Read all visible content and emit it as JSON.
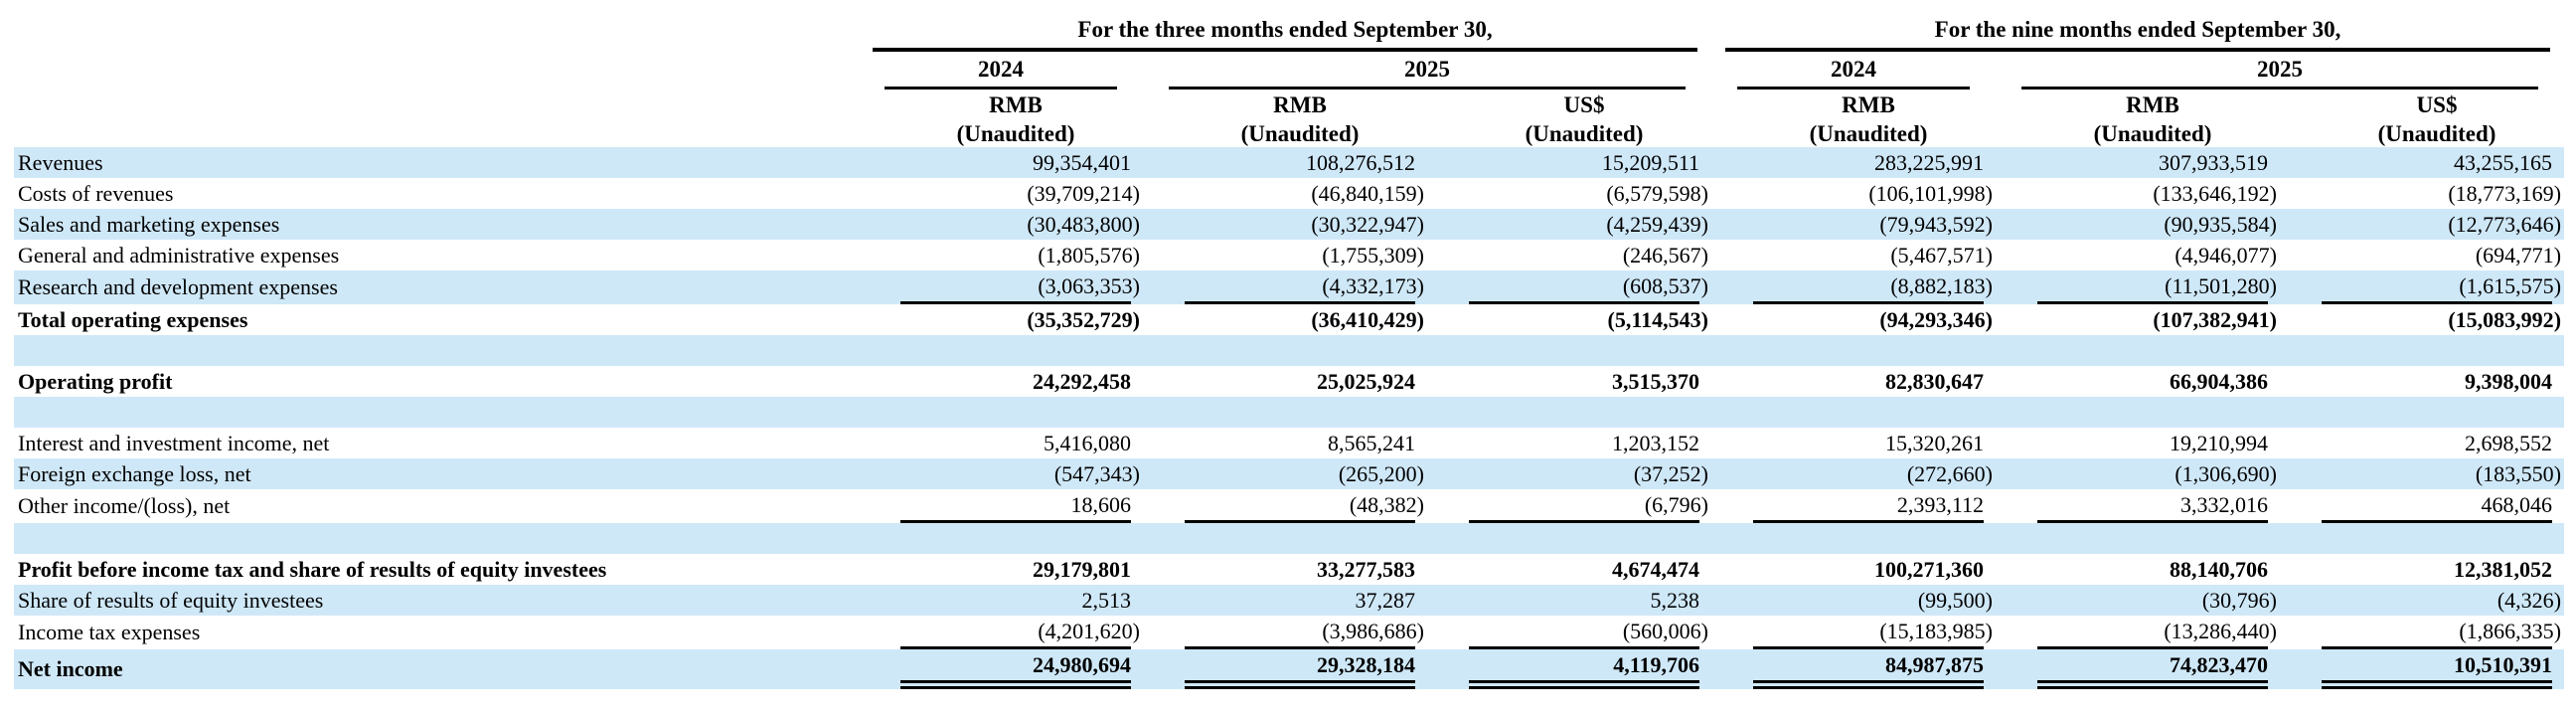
{
  "page": {
    "background": "#ffffff",
    "stripe_color": "#cfe8f8",
    "text_color": "#000000"
  },
  "header": {
    "groups": [
      {
        "title": "For the three months ended September 30,",
        "years": [
          {
            "label": "2024",
            "span": 1
          },
          {
            "label": "2025",
            "span": 2
          }
        ]
      },
      {
        "title": "For the nine months ended September 30,",
        "years": [
          {
            "label": "2024",
            "span": 1
          },
          {
            "label": "2025",
            "span": 2
          }
        ]
      }
    ],
    "currencies": [
      "RMB",
      "RMB",
      "US$",
      "RMB",
      "RMB",
      "US$"
    ],
    "unaudited": "(Unaudited)"
  },
  "rows": [
    {
      "label": "Revenues",
      "bold": false,
      "shaded": true,
      "rule": "",
      "blank": false,
      "values": [
        "99,354,401",
        "108,276,512",
        "15,209,511",
        "283,225,991",
        "307,933,519",
        "43,255,165"
      ]
    },
    {
      "label": "Costs of revenues",
      "bold": false,
      "shaded": false,
      "rule": "",
      "blank": false,
      "values": [
        "(39,709,214)",
        "(46,840,159)",
        "(6,579,598)",
        "(106,101,998)",
        "(133,646,192)",
        "(18,773,169)"
      ]
    },
    {
      "label": "Sales and marketing expenses",
      "bold": false,
      "shaded": true,
      "rule": "",
      "blank": false,
      "values": [
        "(30,483,800)",
        "(30,322,947)",
        "(4,259,439)",
        "(79,943,592)",
        "(90,935,584)",
        "(12,773,646)"
      ]
    },
    {
      "label": "General and administrative expenses",
      "bold": false,
      "shaded": false,
      "rule": "",
      "blank": false,
      "values": [
        "(1,805,576)",
        "(1,755,309)",
        "(246,567)",
        "(5,467,571)",
        "(4,946,077)",
        "(694,771)"
      ]
    },
    {
      "label": "Research and development expenses",
      "bold": false,
      "shaded": true,
      "rule": "bottom-single",
      "blank": false,
      "values": [
        "(3,063,353)",
        "(4,332,173)",
        "(608,537)",
        "(8,882,183)",
        "(11,501,280)",
        "(1,615,575)"
      ]
    },
    {
      "label": "Total operating expenses",
      "bold": true,
      "shaded": false,
      "rule": "",
      "blank": false,
      "values": [
        "(35,352,729)",
        "(36,410,429)",
        "(5,114,543)",
        "(94,293,346)",
        "(107,382,941)",
        "(15,083,992)"
      ]
    },
    {
      "label": "",
      "bold": false,
      "shaded": true,
      "rule": "",
      "blank": true,
      "values": [
        "",
        "",
        "",
        "",
        "",
        ""
      ]
    },
    {
      "label": "Operating profit",
      "bold": true,
      "shaded": false,
      "rule": "",
      "blank": false,
      "values": [
        "24,292,458",
        "25,025,924",
        "3,515,370",
        "82,830,647",
        "66,904,386",
        "9,398,004"
      ]
    },
    {
      "label": "",
      "bold": false,
      "shaded": true,
      "rule": "",
      "blank": true,
      "values": [
        "",
        "",
        "",
        "",
        "",
        ""
      ]
    },
    {
      "label": "Interest and investment income, net",
      "bold": false,
      "shaded": false,
      "rule": "",
      "blank": false,
      "values": [
        "5,416,080",
        "8,565,241",
        "1,203,152",
        "15,320,261",
        "19,210,994",
        "2,698,552"
      ]
    },
    {
      "label": "Foreign exchange loss, net",
      "bold": false,
      "shaded": true,
      "rule": "",
      "blank": false,
      "values": [
        "(547,343)",
        "(265,200)",
        "(37,252)",
        "(272,660)",
        "(1,306,690)",
        "(183,550)"
      ]
    },
    {
      "label": "Other income/(loss), net",
      "bold": false,
      "shaded": false,
      "rule": "bottom-single",
      "blank": false,
      "values": [
        "18,606",
        "(48,382)",
        "(6,796)",
        "2,393,112",
        "3,332,016",
        "468,046"
      ]
    },
    {
      "label": "",
      "bold": false,
      "shaded": true,
      "rule": "",
      "blank": true,
      "values": [
        "",
        "",
        "",
        "",
        "",
        ""
      ]
    },
    {
      "label": "Profit before income tax and share of results of equity investees",
      "bold": true,
      "shaded": false,
      "rule": "",
      "blank": false,
      "values": [
        "29,179,801",
        "33,277,583",
        "4,674,474",
        "100,271,360",
        "88,140,706",
        "12,381,052"
      ]
    },
    {
      "label": "Share of results of equity investees",
      "bold": false,
      "shaded": true,
      "rule": "",
      "blank": false,
      "values": [
        "2,513",
        "37,287",
        "5,238",
        "(99,500)",
        "(30,796)",
        "(4,326)"
      ]
    },
    {
      "label": "Income tax expenses",
      "bold": false,
      "shaded": false,
      "rule": "bottom-single",
      "blank": false,
      "values": [
        "(4,201,620)",
        "(3,986,686)",
        "(560,006)",
        "(15,183,985)",
        "(13,286,440)",
        "(1,866,335)"
      ]
    },
    {
      "label": "Net income",
      "bold": true,
      "shaded": true,
      "rule": "bottom-double",
      "blank": false,
      "values": [
        "24,980,694",
        "29,328,184",
        "4,119,706",
        "84,987,875",
        "74,823,470",
        "10,510,391"
      ]
    }
  ]
}
